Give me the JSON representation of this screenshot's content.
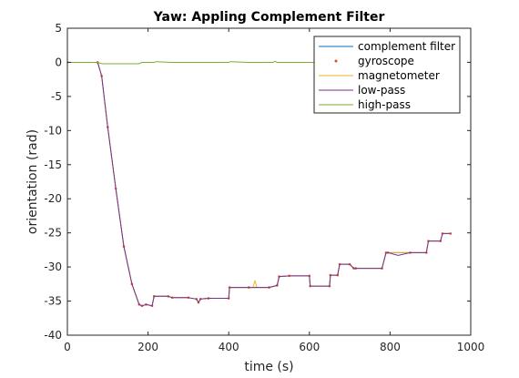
{
  "chart_data": {
    "type": "line",
    "title": "Yaw: Appling Complement Filter",
    "xlabel": "time (s)",
    "ylabel": "orientation (rad)",
    "xlim": [
      0,
      1000
    ],
    "ylim": [
      -40,
      5
    ],
    "xticks": [
      0,
      200,
      400,
      600,
      800,
      1000
    ],
    "yticks": [
      5,
      0,
      -5,
      -10,
      -15,
      -20,
      -25,
      -30,
      -35,
      -40
    ],
    "grid": false,
    "legend_position": "top-right",
    "series": [
      {
        "name": "complement filter",
        "color": "#0072bd",
        "style": "line",
        "x": [
          0,
          75,
          85,
          100,
          120,
          140,
          160,
          178,
          185,
          195,
          210,
          215,
          250,
          260,
          300,
          320,
          325,
          330,
          350,
          400,
          402,
          450,
          500,
          520,
          525,
          550,
          600,
          602,
          650,
          652,
          670,
          675,
          700,
          710,
          715,
          780,
          790,
          795,
          850,
          890,
          895,
          925,
          930,
          950
        ],
        "y": [
          0,
          0,
          -2,
          -9.5,
          -18.5,
          -27,
          -32.5,
          -35.5,
          -35.7,
          -35.5,
          -35.7,
          -34.3,
          -34.3,
          -34.5,
          -34.5,
          -34.7,
          -35.2,
          -34.7,
          -34.6,
          -34.6,
          -33.0,
          -33.0,
          -33.0,
          -32.7,
          -31.4,
          -31.3,
          -31.3,
          -32.8,
          -32.8,
          -31.2,
          -31.2,
          -29.6,
          -29.6,
          -30.2,
          -30.2,
          -30.2,
          -27.9,
          -27.9,
          -27.9,
          -27.9,
          -26.2,
          -26.2,
          -25.1,
          -25.1
        ]
      },
      {
        "name": "gyroscope",
        "color": "#d95319",
        "style": "dots",
        "x": [
          0,
          75,
          85,
          100,
          120,
          140,
          160,
          178,
          185,
          195,
          210,
          215,
          250,
          260,
          300,
          320,
          325,
          330,
          350,
          400,
          402,
          450,
          500,
          520,
          525,
          550,
          600,
          602,
          650,
          652,
          670,
          675,
          700,
          710,
          715,
          780,
          790,
          795,
          850,
          890,
          895,
          925,
          930,
          950
        ],
        "y": [
          0,
          0,
          -2,
          -9.5,
          -18.5,
          -27,
          -32.5,
          -35.5,
          -35.7,
          -35.5,
          -35.7,
          -34.3,
          -34.3,
          -34.5,
          -34.5,
          -34.7,
          -35.2,
          -34.7,
          -34.6,
          -34.6,
          -33.0,
          -33.0,
          -33.0,
          -32.7,
          -31.4,
          -31.3,
          -31.3,
          -32.8,
          -32.8,
          -31.2,
          -31.2,
          -29.6,
          -29.6,
          -30.2,
          -30.2,
          -30.2,
          -27.9,
          -27.9,
          -27.9,
          -27.9,
          -26.2,
          -26.2,
          -25.1,
          -25.1
        ]
      },
      {
        "name": "magnetometer",
        "color": "#edb120",
        "style": "line",
        "x": [
          0,
          75,
          85,
          100,
          120,
          140,
          160,
          178,
          185,
          195,
          210,
          215,
          250,
          260,
          300,
          320,
          325,
          330,
          350,
          400,
          402,
          450,
          460,
          465,
          470,
          500,
          520,
          525,
          550,
          600,
          602,
          650,
          652,
          670,
          675,
          700,
          710,
          715,
          780,
          790,
          795,
          850,
          890,
          895,
          925,
          930,
          950
        ],
        "y": [
          0,
          0,
          -2,
          -9.5,
          -18.5,
          -27,
          -32.5,
          -35.5,
          -35.7,
          -35.5,
          -35.7,
          -34.3,
          -34.3,
          -34.5,
          -34.5,
          -34.7,
          -35.2,
          -34.7,
          -34.6,
          -34.6,
          -33.0,
          -33.0,
          -33.0,
          -32.0,
          -33.0,
          -33.0,
          -32.7,
          -31.4,
          -31.3,
          -31.3,
          -32.8,
          -32.8,
          -31.2,
          -31.2,
          -29.6,
          -29.6,
          -30.2,
          -30.2,
          -30.2,
          -27.9,
          -27.9,
          -27.9,
          -27.9,
          -26.2,
          -26.2,
          -25.1,
          -25.1
        ]
      },
      {
        "name": "low-pass",
        "color": "#7e2f8e",
        "style": "line",
        "x": [
          0,
          75,
          85,
          100,
          120,
          140,
          160,
          178,
          185,
          195,
          210,
          215,
          250,
          260,
          300,
          320,
          325,
          330,
          350,
          400,
          402,
          450,
          500,
          520,
          525,
          550,
          600,
          602,
          650,
          652,
          670,
          675,
          700,
          710,
          715,
          780,
          790,
          795,
          820,
          850,
          890,
          895,
          925,
          930,
          950
        ],
        "y": [
          0,
          0,
          -2,
          -9.5,
          -18.5,
          -27,
          -32.5,
          -35.5,
          -35.7,
          -35.5,
          -35.7,
          -34.3,
          -34.3,
          -34.5,
          -34.5,
          -34.7,
          -35.2,
          -34.7,
          -34.6,
          -34.6,
          -33.0,
          -33.0,
          -33.0,
          -32.7,
          -31.4,
          -31.3,
          -31.3,
          -32.8,
          -32.8,
          -31.2,
          -31.2,
          -29.6,
          -29.6,
          -30.2,
          -30.2,
          -30.2,
          -27.9,
          -27.9,
          -28.3,
          -27.9,
          -27.9,
          -26.2,
          -26.2,
          -25.1,
          -25.1
        ]
      },
      {
        "name": "high-pass",
        "color": "#77ac30",
        "style": "line",
        "x": [
          0,
          75,
          85,
          120,
          160,
          178,
          185,
          215,
          220,
          260,
          300,
          400,
          405,
          450,
          510,
          515,
          520,
          600,
          650,
          700,
          750,
          800,
          850,
          900,
          950
        ],
        "y": [
          0,
          0,
          -0.2,
          -0.2,
          -0.2,
          -0.2,
          0,
          0,
          0.1,
          0,
          0,
          0,
          0.1,
          0,
          0,
          0.15,
          0,
          0,
          0,
          0,
          0,
          0,
          0,
          0,
          0
        ]
      }
    ]
  }
}
